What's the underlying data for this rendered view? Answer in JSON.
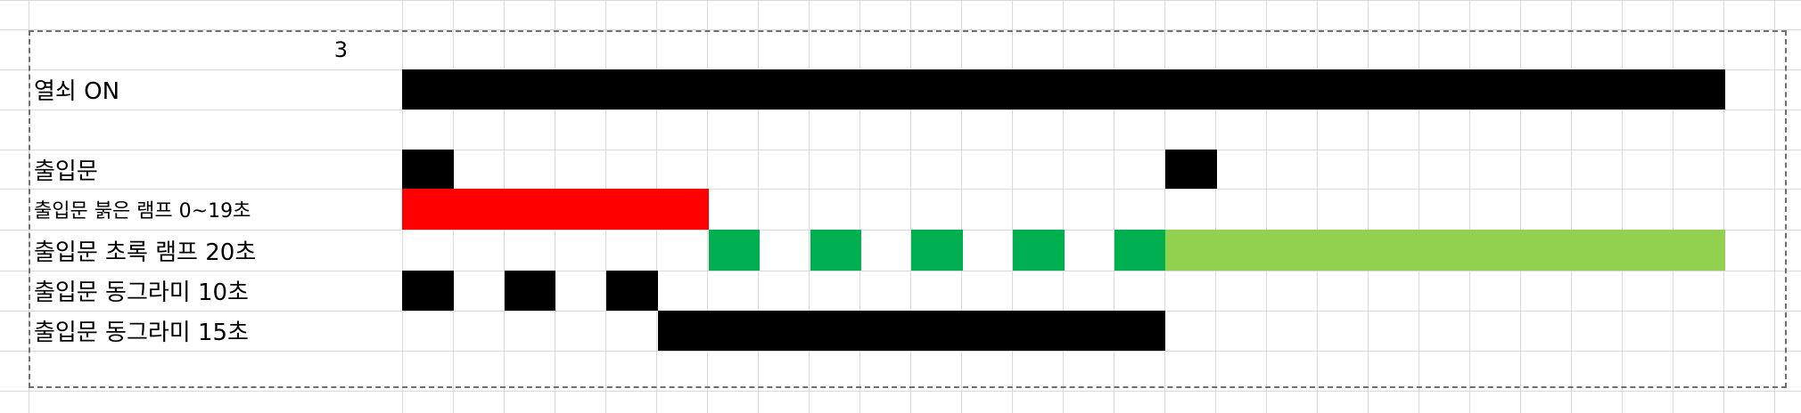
{
  "sheet": {
    "corner_value": "3",
    "rows": [
      {
        "label": "열쇠 ON",
        "size": "big"
      },
      {
        "label": "출입문",
        "size": "big"
      },
      {
        "label": "출입문 붉은 램프 0~19초",
        "size": "small"
      },
      {
        "label": "출입문 초록 램프 20초",
        "size": "big"
      },
      {
        "label": "출입문 동그라미 10초",
        "size": "big"
      },
      {
        "label": "출입문 동그라미 15초",
        "size": "big"
      }
    ]
  },
  "colors": {
    "black": "#000000",
    "red": "#ff0000",
    "green": "#00b050",
    "light_green": "#92d050",
    "gridline": "#d9d9d9",
    "print_area_border": "#6f6f6f"
  }
}
